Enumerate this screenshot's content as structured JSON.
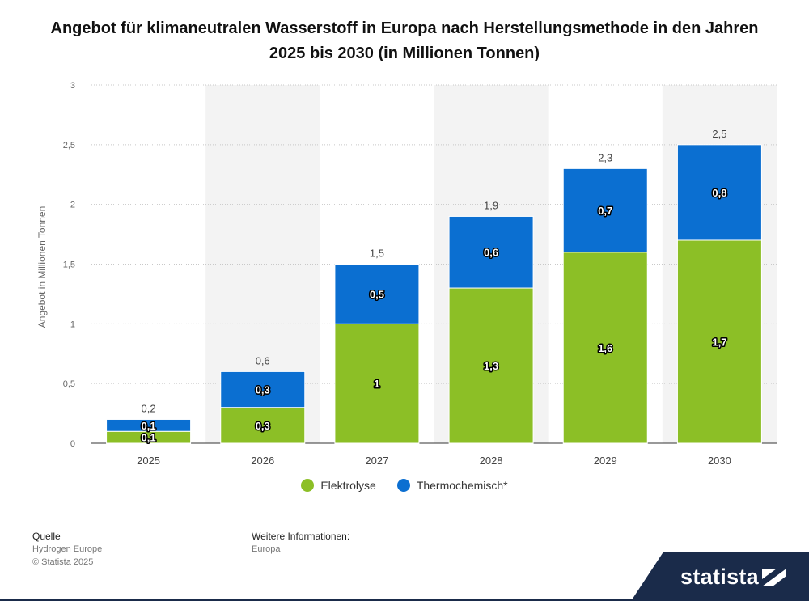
{
  "title": "Angebot für klimaneutralen Wasserstoff in Europa nach Herstellungsmethode in den Jahren 2025 bis 2030 (in Millionen Tonnen)",
  "chart_data": {
    "type": "bar",
    "stacked": true,
    "title": "Angebot für klimaneutralen Wasserstoff in Europa nach Herstellungsmethode in den Jahren 2025 bis 2030 (in Millionen Tonnen)",
    "xlabel": "",
    "ylabel": "Angebot in Millionen Tonnen",
    "categories": [
      "2025",
      "2026",
      "2027",
      "2028",
      "2029",
      "2030"
    ],
    "series": [
      {
        "name": "Elektrolyse",
        "values": [
          0.1,
          0.3,
          1.0,
          1.3,
          1.6,
          1.7
        ],
        "labels": [
          "0,1",
          "0,3",
          "1",
          "1,3",
          "1,6",
          "1,7"
        ],
        "color": "#8cbf26"
      },
      {
        "name": "Thermochemisch*",
        "values": [
          0.1,
          0.3,
          0.5,
          0.6,
          0.7,
          0.8
        ],
        "labels": [
          "0,1",
          "0,3",
          "0,5",
          "0,6",
          "0,7",
          "0,8"
        ],
        "color": "#0b6fd1"
      }
    ],
    "totals": [
      "0,2",
      "0,6",
      "1,5",
      "1,9",
      "2,3",
      "2,5"
    ],
    "yticks": [
      "0",
      "0,5",
      "1",
      "1,5",
      "2",
      "2,5",
      "3"
    ],
    "ylim": [
      0,
      3
    ],
    "grid": true,
    "legend_position": "bottom"
  },
  "legend": [
    {
      "label": "Elektrolyse",
      "color": "#8cbf26"
    },
    {
      "label": "Thermochemisch*",
      "color": "#0b6fd1"
    }
  ],
  "footer": {
    "source_heading": "Quelle",
    "source_name": "Hydrogen Europe",
    "copyright": "© Statista 2025",
    "info_heading": "Weitere Informationen:",
    "info_value": "Europa"
  },
  "brand": {
    "name": "statista",
    "color": "#1a2b4a"
  }
}
